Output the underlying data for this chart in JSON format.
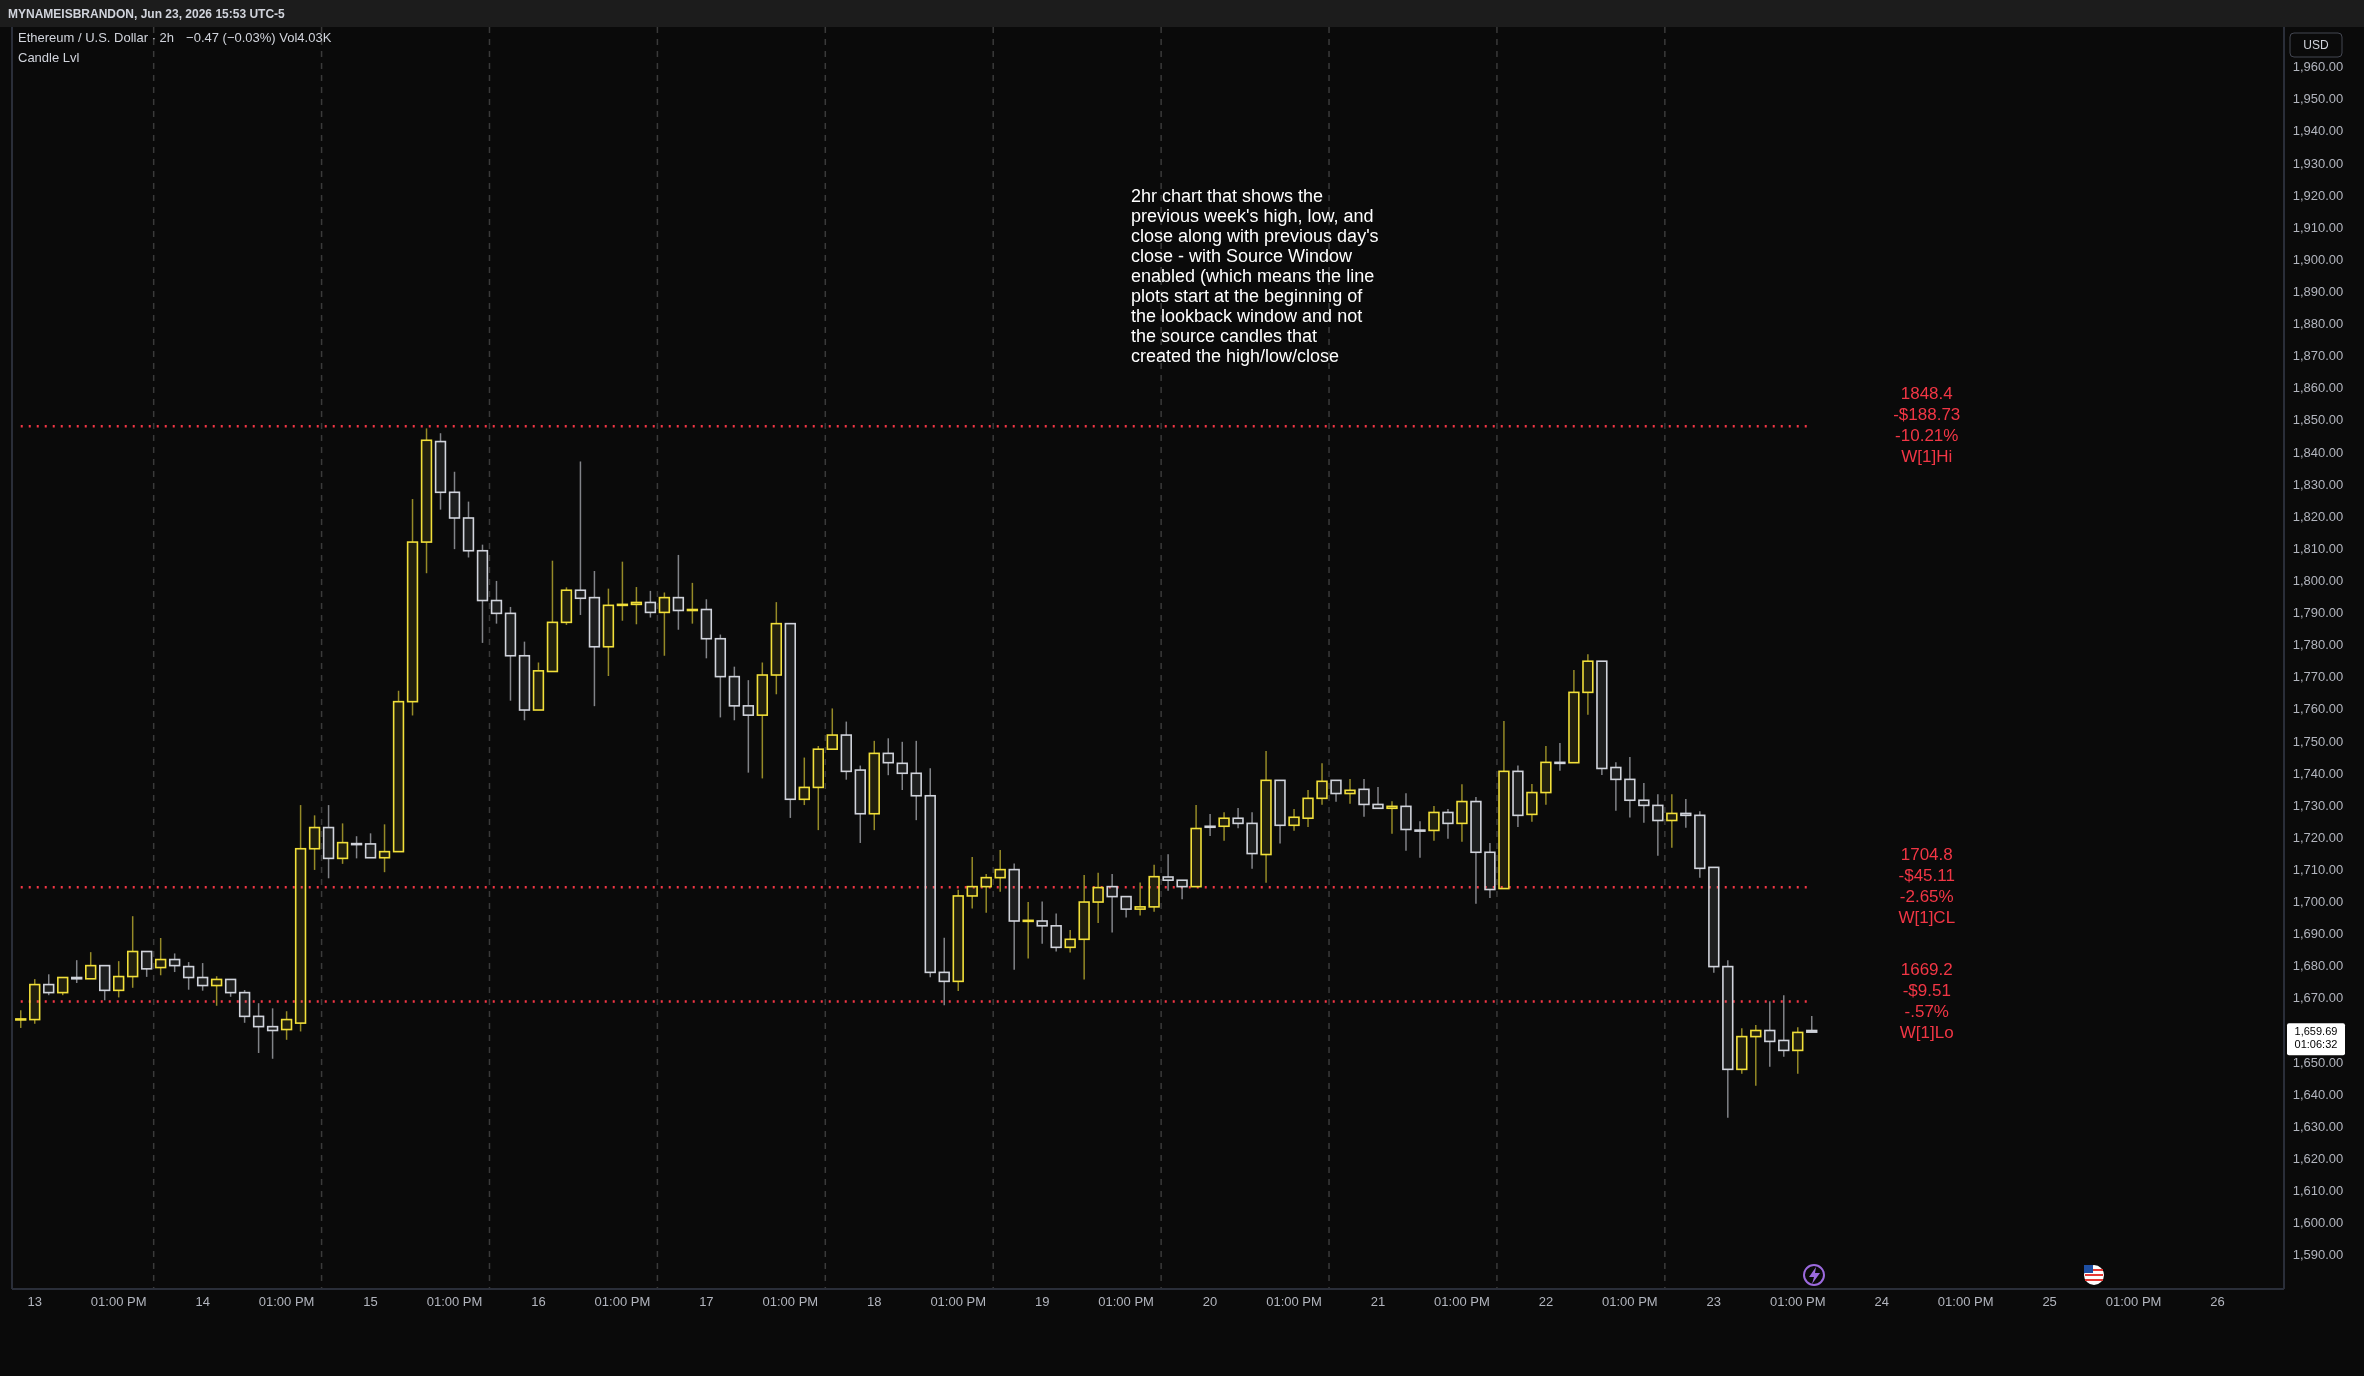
{
  "chart_data": {
    "type": "candlestick",
    "title": "Ethereum / U.S. Dollar · 2h",
    "subtitle": "−0.47 (−0.03%)   Vol4.03K",
    "annotations": [
      "MYNAMEISBRANDON, Jun 23, 2026 15:53 UTC-5",
      "Candle Lvl",
      "2hr chart that shows the\nprevious week's high, low, and\nclose along with previous day's\nclose - with Source Window\nenabled (which means the line\nplots start at the beginning of\nthe lookback window and not\nthe source candles that\ncreated the high/low/close",
      "USD",
      "1,659.69\n01:06:32"
    ],
    "x": [
      "2026-06-12T23:00",
      "2026-06-13T01:00",
      "2026-06-13T03:00",
      "2026-06-13T05:00",
      "2026-06-13T07:00",
      "2026-06-13T09:00",
      "2026-06-13T11:00",
      "2026-06-13T13:00",
      "2026-06-13T15:00",
      "2026-06-13T17:00",
      "2026-06-13T19:00",
      "2026-06-13T21:00",
      "2026-06-13T23:00",
      "2026-06-14T01:00",
      "2026-06-14T03:00",
      "2026-06-14T05:00",
      "2026-06-14T07:00",
      "2026-06-14T09:00",
      "2026-06-14T11:00",
      "2026-06-14T13:00",
      "2026-06-14T15:00",
      "2026-06-14T17:00",
      "2026-06-14T19:00",
      "2026-06-14T21:00",
      "2026-06-14T23:00",
      "2026-06-15T01:00",
      "2026-06-15T03:00",
      "2026-06-15T05:00",
      "2026-06-15T07:00",
      "2026-06-15T09:00",
      "2026-06-15T11:00",
      "2026-06-15T13:00",
      "2026-06-15T15:00",
      "2026-06-15T17:00",
      "2026-06-15T19:00",
      "2026-06-15T21:00",
      "2026-06-15T23:00",
      "2026-06-16T01:00",
      "2026-06-16T03:00",
      "2026-06-16T05:00",
      "2026-06-16T07:00",
      "2026-06-16T09:00",
      "2026-06-16T11:00",
      "2026-06-16T13:00",
      "2026-06-16T15:00",
      "2026-06-16T17:00",
      "2026-06-16T19:00",
      "2026-06-16T21:00",
      "2026-06-16T23:00",
      "2026-06-17T01:00",
      "2026-06-17T03:00",
      "2026-06-17T05:00",
      "2026-06-17T07:00",
      "2026-06-17T09:00",
      "2026-06-17T11:00",
      "2026-06-17T13:00",
      "2026-06-17T15:00",
      "2026-06-17T17:00",
      "2026-06-17T19:00",
      "2026-06-17T21:00",
      "2026-06-17T23:00",
      "2026-06-18T01:00",
      "2026-06-18T03:00",
      "2026-06-18T05:00",
      "2026-06-18T07:00",
      "2026-06-18T09:00",
      "2026-06-18T11:00",
      "2026-06-18T13:00",
      "2026-06-18T15:00",
      "2026-06-18T17:00",
      "2026-06-18T19:00",
      "2026-06-18T21:00",
      "2026-06-18T23:00",
      "2026-06-19T01:00",
      "2026-06-19T03:00",
      "2026-06-19T05:00",
      "2026-06-19T07:00",
      "2026-06-19T09:00",
      "2026-06-19T11:00",
      "2026-06-19T13:00",
      "2026-06-19T15:00",
      "2026-06-19T17:00",
      "2026-06-19T19:00",
      "2026-06-19T21:00",
      "2026-06-19T23:00",
      "2026-06-20T01:00",
      "2026-06-20T03:00",
      "2026-06-20T05:00",
      "2026-06-20T07:00",
      "2026-06-20T09:00",
      "2026-06-20T11:00",
      "2026-06-20T13:00",
      "2026-06-20T15:00",
      "2026-06-20T17:00",
      "2026-06-20T19:00",
      "2026-06-20T21:00",
      "2026-06-20T23:00",
      "2026-06-21T01:00",
      "2026-06-21T03:00",
      "2026-06-21T05:00",
      "2026-06-21T07:00",
      "2026-06-21T09:00",
      "2026-06-21T11:00",
      "2026-06-21T13:00",
      "2026-06-21T15:00",
      "2026-06-21T17:00",
      "2026-06-21T19:00",
      "2026-06-21T21:00",
      "2026-06-21T23:00",
      "2026-06-22T01:00",
      "2026-06-22T03:00",
      "2026-06-22T05:00",
      "2026-06-22T07:00",
      "2026-06-22T09:00",
      "2026-06-22T11:00",
      "2026-06-22T13:00",
      "2026-06-22T15:00",
      "2026-06-22T17:00",
      "2026-06-22T19:00",
      "2026-06-22T21:00",
      "2026-06-22T23:00",
      "2026-06-23T01:00",
      "2026-06-23T03:00",
      "2026-06-23T05:00",
      "2026-06-23T07:00",
      "2026-06-23T09:00",
      "2026-06-23T11:00",
      "2026-06-23T13:00",
      "2026-06-23T15:00"
    ],
    "ohlc": [
      [
        1663.6,
        1666.5,
        1661.0,
        1663.8
      ],
      [
        1663.6,
        1676.2,
        1662.3,
        1674.5
      ],
      [
        1674.5,
        1677.7,
        1671.2,
        1672.0
      ],
      [
        1672.0,
        1677.1,
        1671.2,
        1676.7
      ],
      [
        1676.7,
        1682.1,
        1675.0,
        1676.3
      ],
      [
        1676.3,
        1684.6,
        1675.9,
        1680.4
      ],
      [
        1680.4,
        1680.9,
        1669.6,
        1672.7
      ],
      [
        1672.7,
        1681.8,
        1670.5,
        1677.0
      ],
      [
        1677.0,
        1695.8,
        1673.5,
        1684.8
      ],
      [
        1684.8,
        1684.8,
        1676.9,
        1679.4
      ],
      [
        1679.8,
        1689.0,
        1677.4,
        1682.3
      ],
      [
        1682.3,
        1684.2,
        1678.4,
        1680.4
      ],
      [
        1680.1,
        1681.5,
        1672.9,
        1676.7
      ],
      [
        1676.7,
        1681.2,
        1672.6,
        1674.2
      ],
      [
        1674.2,
        1677.1,
        1667.9,
        1676.1
      ],
      [
        1676.1,
        1676.7,
        1670.7,
        1672.0
      ],
      [
        1672.0,
        1672.8,
        1662.6,
        1664.6
      ],
      [
        1664.6,
        1668.7,
        1653.2,
        1661.4
      ],
      [
        1661.4,
        1667.1,
        1651.4,
        1660.2
      ],
      [
        1660.5,
        1666.2,
        1657.3,
        1663.6
      ],
      [
        1662.5,
        1730.4,
        1659.9,
        1716.8
      ],
      [
        1716.8,
        1727.2,
        1710.2,
        1723.4
      ],
      [
        1723.4,
        1730.4,
        1707.6,
        1713.8
      ],
      [
        1713.8,
        1724.7,
        1712.1,
        1718.7
      ],
      [
        1718.4,
        1720.7,
        1713.8,
        1718.2
      ],
      [
        1718.3,
        1721.6,
        1714.0,
        1714.0
      ],
      [
        1714.0,
        1724.4,
        1709.5,
        1715.9
      ],
      [
        1715.9,
        1766.0,
        1715.9,
        1762.6
      ],
      [
        1762.6,
        1825.7,
        1758.3,
        1812.3
      ],
      [
        1812.3,
        1847.7,
        1802.6,
        1844.0
      ],
      [
        1843.6,
        1846.2,
        1822.4,
        1827.8
      ],
      [
        1827.8,
        1834.2,
        1810.1,
        1819.8
      ],
      [
        1819.8,
        1824.9,
        1807.5,
        1809.6
      ],
      [
        1809.6,
        1811.5,
        1780.9,
        1794.1
      ],
      [
        1794.1,
        1800.2,
        1786.9,
        1790.1
      ],
      [
        1790.1,
        1792.1,
        1762.9,
        1776.9
      ],
      [
        1776.9,
        1781.3,
        1756.8,
        1760.0
      ],
      [
        1760.0,
        1774.8,
        1760.0,
        1772.2
      ],
      [
        1772.0,
        1806.5,
        1772.0,
        1787.3
      ],
      [
        1787.3,
        1798.2,
        1786.5,
        1797.3
      ],
      [
        1797.3,
        1837.4,
        1789.6,
        1794.8
      ],
      [
        1795.0,
        1803.3,
        1761.2,
        1779.7
      ],
      [
        1779.7,
        1797.8,
        1770.6,
        1792.6
      ],
      [
        1792.7,
        1806.2,
        1787.8,
        1792.9
      ],
      [
        1792.9,
        1798.3,
        1786.7,
        1793.5
      ],
      [
        1793.5,
        1797.1,
        1788.8,
        1790.4
      ],
      [
        1790.4,
        1796.6,
        1776.9,
        1795.0
      ],
      [
        1795.0,
        1808.3,
        1785.0,
        1791.0
      ],
      [
        1791.1,
        1799.6,
        1786.9,
        1791.3
      ],
      [
        1791.3,
        1794.5,
        1776.1,
        1782.2
      ],
      [
        1782.2,
        1783.5,
        1757.7,
        1770.4
      ],
      [
        1770.4,
        1773.5,
        1756.8,
        1761.3
      ],
      [
        1761.3,
        1769.3,
        1740.5,
        1758.4
      ],
      [
        1758.4,
        1774.8,
        1738.7,
        1770.9
      ],
      [
        1770.9,
        1793.6,
        1764.9,
        1786.9
      ],
      [
        1786.9,
        1786.9,
        1726.4,
        1732.2
      ],
      [
        1732.2,
        1745.2,
        1730.4,
        1735.9
      ],
      [
        1735.9,
        1748.8,
        1722.6,
        1747.8
      ],
      [
        1747.8,
        1760.5,
        1747.6,
        1752.2
      ],
      [
        1752.2,
        1756.4,
        1738.3,
        1740.9
      ],
      [
        1741.3,
        1742.7,
        1718.6,
        1727.7
      ],
      [
        1727.7,
        1750.4,
        1722.6,
        1746.5
      ],
      [
        1746.5,
        1751.2,
        1739.7,
        1743.6
      ],
      [
        1743.4,
        1750.1,
        1735.1,
        1740.3
      ],
      [
        1740.3,
        1750.4,
        1725.7,
        1733.3
      ],
      [
        1733.3,
        1741.9,
        1676.8,
        1678.3
      ],
      [
        1678.3,
        1689.1,
        1668.1,
        1675.5
      ],
      [
        1675.5,
        1704.0,
        1672.5,
        1702.1
      ],
      [
        1702.1,
        1714.2,
        1698.2,
        1705.0
      ],
      [
        1705.0,
        1708.9,
        1696.9,
        1707.8
      ],
      [
        1707.8,
        1716.4,
        1703.4,
        1710.3
      ],
      [
        1710.3,
        1712.2,
        1679.1,
        1694.3
      ],
      [
        1694.3,
        1700.2,
        1682.6,
        1694.5
      ],
      [
        1694.3,
        1700.4,
        1687.2,
        1692.8
      ],
      [
        1692.8,
        1696.6,
        1684.8,
        1686.1
      ],
      [
        1686.1,
        1691.5,
        1684.5,
        1688.6
      ],
      [
        1688.6,
        1708.6,
        1676.1,
        1700.2
      ],
      [
        1700.2,
        1709.3,
        1693.7,
        1704.7
      ],
      [
        1705.0,
        1708.9,
        1690.7,
        1701.9
      ],
      [
        1701.9,
        1702.5,
        1695.4,
        1698.0
      ],
      [
        1698.0,
        1706.3,
        1696.0,
        1698.7
      ],
      [
        1698.7,
        1711.8,
        1697.2,
        1708.1
      ],
      [
        1708.0,
        1715.1,
        1703.7,
        1707.0
      ],
      [
        1707.0,
        1707.6,
        1701.1,
        1705.0
      ],
      [
        1705.0,
        1730.4,
        1705.0,
        1723.1
      ],
      [
        1723.8,
        1727.6,
        1720.8,
        1723.6
      ],
      [
        1723.8,
        1728.2,
        1719.3,
        1726.3
      ],
      [
        1726.3,
        1729.5,
        1723.2,
        1724.7
      ],
      [
        1724.7,
        1728.2,
        1710.6,
        1715.3
      ],
      [
        1715.0,
        1747.2,
        1706.2,
        1738.1
      ],
      [
        1738.1,
        1738.4,
        1718.4,
        1724.1
      ],
      [
        1724.1,
        1729.2,
        1722.4,
        1726.6
      ],
      [
        1726.3,
        1735.1,
        1723.6,
        1732.5
      ],
      [
        1732.5,
        1743.4,
        1730.5,
        1737.8
      ],
      [
        1738.1,
        1738.1,
        1731.4,
        1734.0
      ],
      [
        1734.0,
        1738.5,
        1730.8,
        1735.0
      ],
      [
        1735.3,
        1738.5,
        1726.8,
        1730.6
      ],
      [
        1730.6,
        1736.0,
        1728.9,
        1729.4
      ],
      [
        1729.4,
        1731.6,
        1721.5,
        1730.0
      ],
      [
        1730.0,
        1734.1,
        1716.2,
        1722.8
      ],
      [
        1722.6,
        1725.4,
        1714.0,
        1722.4
      ],
      [
        1722.5,
        1730.1,
        1719.3,
        1728.1
      ],
      [
        1728.1,
        1729.2,
        1719.9,
        1724.7
      ],
      [
        1724.7,
        1736.9,
        1719.0,
        1731.5
      ],
      [
        1731.5,
        1732.9,
        1699.7,
        1715.7
      ],
      [
        1715.7,
        1718.6,
        1701.5,
        1704.1
      ],
      [
        1704.4,
        1756.6,
        1704.4,
        1740.9
      ],
      [
        1740.9,
        1742.7,
        1723.6,
        1727.2
      ],
      [
        1727.5,
        1737.0,
        1725.2,
        1734.3
      ],
      [
        1734.3,
        1748.8,
        1730.5,
        1743.7
      ],
      [
        1743.7,
        1749.7,
        1741.1,
        1743.5
      ],
      [
        1743.6,
        1772.5,
        1743.1,
        1765.5
      ],
      [
        1765.5,
        1777.4,
        1758.5,
        1775.2
      ],
      [
        1775.2,
        1775.6,
        1739.8,
        1741.8
      ],
      [
        1742.1,
        1743.7,
        1728.6,
        1738.4
      ],
      [
        1738.4,
        1745.4,
        1726.5,
        1731.9
      ],
      [
        1731.9,
        1737.3,
        1724.9,
        1730.3
      ],
      [
        1730.3,
        1733.8,
        1714.6,
        1725.6
      ],
      [
        1725.6,
        1733.8,
        1717.1,
        1727.8
      ],
      [
        1727.8,
        1732.3,
        1723.3,
        1727.2
      ],
      [
        1727.2,
        1728.5,
        1707.8,
        1710.7
      ],
      [
        1711.0,
        1711.0,
        1678.2,
        1680.1
      ],
      [
        1680.1,
        1682.1,
        1633.0,
        1648.1
      ],
      [
        1648.1,
        1660.9,
        1646.7,
        1658.3
      ],
      [
        1658.3,
        1661.9,
        1643.0,
        1660.2
      ],
      [
        1660.2,
        1669.3,
        1648.9,
        1656.8
      ],
      [
        1657.1,
        1671.2,
        1652.0,
        1654.0
      ],
      [
        1654.0,
        1661.2,
        1646.7,
        1659.6
      ],
      [
        1660.2,
        1664.7,
        1659.5,
        1659.69
      ]
    ],
    "colors": [
      "#f2e03a",
      "#f2e03a",
      "#d1d4dc",
      "#f2e03a",
      "#d1d4dc",
      "#f2e03a",
      "#d1d4dc",
      "#f2e03a",
      "#f2e03a",
      "#d1d4dc",
      "#f2e03a",
      "#d1d4dc",
      "#d1d4dc",
      "#d1d4dc",
      "#f2e03a",
      "#d1d4dc",
      "#d1d4dc",
      "#d1d4dc",
      "#d1d4dc",
      "#f2e03a",
      "#f2e03a",
      "#f2e03a",
      "#d1d4dc",
      "#f2e03a",
      "#d1d4dc",
      "#d1d4dc",
      "#f2e03a",
      "#f2e03a",
      "#f2e03a",
      "#f2e03a",
      "#d1d4dc",
      "#d1d4dc",
      "#d1d4dc",
      "#d1d4dc",
      "#d1d4dc",
      "#d1d4dc",
      "#d1d4dc",
      "#f2e03a",
      "#f2e03a",
      "#f2e03a",
      "#d1d4dc",
      "#d1d4dc",
      "#f2e03a",
      "#f2e03a",
      "#f2e03a",
      "#d1d4dc",
      "#f2e03a",
      "#d1d4dc",
      "#f2e03a",
      "#d1d4dc",
      "#d1d4dc",
      "#d1d4dc",
      "#d1d4dc",
      "#f2e03a",
      "#f2e03a",
      "#d1d4dc",
      "#f2e03a",
      "#f2e03a",
      "#f2e03a",
      "#d1d4dc",
      "#d1d4dc",
      "#f2e03a",
      "#d1d4dc",
      "#d1d4dc",
      "#d1d4dc",
      "#d1d4dc",
      "#d1d4dc",
      "#f2e03a",
      "#f2e03a",
      "#f2e03a",
      "#f2e03a",
      "#d1d4dc",
      "#f2e03a",
      "#d1d4dc",
      "#d1d4dc",
      "#f2e03a",
      "#f2e03a",
      "#f2e03a",
      "#d1d4dc",
      "#d1d4dc",
      "#f2e03a",
      "#f2e03a",
      "#d1d4dc",
      "#d1d4dc",
      "#f2e03a",
      "#d1d4dc",
      "#f2e03a",
      "#d1d4dc",
      "#d1d4dc",
      "#f2e03a",
      "#d1d4dc",
      "#f2e03a",
      "#f2e03a",
      "#f2e03a",
      "#d1d4dc",
      "#f2e03a",
      "#d1d4dc",
      "#d1d4dc",
      "#f2e03a",
      "#d1d4dc",
      "#d1d4dc",
      "#f2e03a",
      "#d1d4dc",
      "#f2e03a",
      "#d1d4dc",
      "#d1d4dc",
      "#f2e03a",
      "#d1d4dc",
      "#f2e03a",
      "#f2e03a",
      "#d1d4dc",
      "#f2e03a",
      "#f2e03a",
      "#d1d4dc",
      "#d1d4dc",
      "#d1d4dc",
      "#d1d4dc",
      "#d1d4dc",
      "#f2e03a",
      "#d1d4dc",
      "#d1d4dc",
      "#d1d4dc",
      "#d1d4dc",
      "#f2e03a",
      "#f2e03a",
      "#d1d4dc",
      "#d1d4dc",
      "#f2e03a",
      "#d1d4dc"
    ],
    "xlim": [
      "2026-06-12T21:45",
      "2026-06-26T10:30"
    ],
    "xticks": [
      {
        "value": "2026-06-13T01:00",
        "label": "13"
      },
      {
        "value": "2026-06-13T13:00",
        "label": "01:00 PM"
      },
      {
        "value": "2026-06-14T01:00",
        "label": "14"
      },
      {
        "value": "2026-06-14T13:00",
        "label": "01:00 PM"
      },
      {
        "value": "2026-06-15T01:00",
        "label": "15"
      },
      {
        "value": "2026-06-15T13:00",
        "label": "01:00 PM"
      },
      {
        "value": "2026-06-16T01:00",
        "label": "16"
      },
      {
        "value": "2026-06-16T13:00",
        "label": "01:00 PM"
      },
      {
        "value": "2026-06-17T01:00",
        "label": "17"
      },
      {
        "value": "2026-06-17T13:00",
        "label": "01:00 PM"
      },
      {
        "value": "2026-06-18T01:00",
        "label": "18"
      },
      {
        "value": "2026-06-18T13:00",
        "label": "01:00 PM"
      },
      {
        "value": "2026-06-19T01:00",
        "label": "19"
      },
      {
        "value": "2026-06-19T13:00",
        "label": "01:00 PM"
      },
      {
        "value": "2026-06-20T01:00",
        "label": "20"
      },
      {
        "value": "2026-06-20T13:00",
        "label": "01:00 PM"
      },
      {
        "value": "2026-06-21T01:00",
        "label": "21"
      },
      {
        "value": "2026-06-21T13:00",
        "label": "01:00 PM"
      },
      {
        "value": "2026-06-22T01:00",
        "label": "22"
      },
      {
        "value": "2026-06-22T13:00",
        "label": "01:00 PM"
      },
      {
        "value": "2026-06-23T01:00",
        "label": "23"
      },
      {
        "value": "2026-06-23T13:00",
        "label": "01:00 PM"
      },
      {
        "value": "2026-06-24T01:00",
        "label": "24"
      },
      {
        "value": "2026-06-24T13:00",
        "label": "01:00 PM"
      },
      {
        "value": "2026-06-25T01:00",
        "label": "25"
      },
      {
        "value": "2026-06-25T13:00",
        "label": "01:00 PM"
      },
      {
        "value": "2026-06-26T01:00",
        "label": "26"
      }
    ],
    "ylim": [
      1579.7,
      1972.7
    ],
    "yticks": [
      {
        "value": 1590,
        "label": "1,590.00"
      },
      {
        "value": 1600,
        "label": "1,600.00"
      },
      {
        "value": 1610,
        "label": "1,610.00"
      },
      {
        "value": 1620,
        "label": "1,620.00"
      },
      {
        "value": 1630,
        "label": "1,630.00"
      },
      {
        "value": 1640,
        "label": "1,640.00"
      },
      {
        "value": 1650,
        "label": "1,650.00"
      },
      {
        "value": 1670,
        "label": "1,670.00"
      },
      {
        "value": 1680,
        "label": "1,680.00"
      },
      {
        "value": 1690,
        "label": "1,690.00"
      },
      {
        "value": 1700,
        "label": "1,700.00"
      },
      {
        "value": 1710,
        "label": "1,710.00"
      },
      {
        "value": 1720,
        "label": "1,720.00"
      },
      {
        "value": 1730,
        "label": "1,730.00"
      },
      {
        "value": 1740,
        "label": "1,740.00"
      },
      {
        "value": 1750,
        "label": "1,750.00"
      },
      {
        "value": 1760,
        "label": "1,760.00"
      },
      {
        "value": 1770,
        "label": "1,770.00"
      },
      {
        "value": 1780,
        "label": "1,780.00"
      },
      {
        "value": 1790,
        "label": "1,790.00"
      },
      {
        "value": 1800,
        "label": "1,800.00"
      },
      {
        "value": 1810,
        "label": "1,810.00"
      },
      {
        "value": 1820,
        "label": "1,820.00"
      },
      {
        "value": 1830,
        "label": "1,830.00"
      },
      {
        "value": 1840,
        "label": "1,840.00"
      },
      {
        "value": 1850,
        "label": "1,850.00"
      },
      {
        "value": 1860,
        "label": "1,860.00"
      },
      {
        "value": 1870,
        "label": "1,870.00"
      },
      {
        "value": 1880,
        "label": "1,880.00"
      },
      {
        "value": 1890,
        "label": "1,890.00"
      },
      {
        "value": 1900,
        "label": "1,900.00"
      },
      {
        "value": 1910,
        "label": "1,910.00"
      },
      {
        "value": 1920,
        "label": "1,920.00"
      },
      {
        "value": 1930,
        "label": "1,930.00"
      },
      {
        "value": 1940,
        "label": "1,940.00"
      },
      {
        "value": 1950,
        "label": "1,950.00"
      },
      {
        "value": 1960,
        "label": "1,960.00"
      }
    ],
    "ref_lines": [
      {
        "axis": "y",
        "value": 1848.4,
        "label": "1848.4\n-$188.73\n-10.21%\nW[1]Hi",
        "color": "#f23645",
        "line_style": "dotted"
      },
      {
        "axis": "y",
        "value": 1704.8,
        "label": "1704.8\n-$45.11\n-2.65%\nW[1]CL",
        "color": "#f23645",
        "line_style": "dotted"
      },
      {
        "axis": "y",
        "value": 1669.2,
        "label": "1669.2\n-$9.51\n-.57%\nW[1]Lo",
        "color": "#f23645",
        "line_style": "dotted"
      },
      {
        "axis": "x",
        "value": "2026-06-13T18:00",
        "color": "#3a3a3a",
        "line_style": "dashed"
      },
      {
        "axis": "x",
        "value": "2026-06-14T18:00",
        "color": "#3a3a3a",
        "line_style": "dashed"
      },
      {
        "axis": "x",
        "value": "2026-06-15T18:00",
        "color": "#3a3a3a",
        "line_style": "dashed"
      },
      {
        "axis": "x",
        "value": "2026-06-16T18:00",
        "color": "#3a3a3a",
        "line_style": "dashed"
      },
      {
        "axis": "x",
        "value": "2026-06-17T18:00",
        "color": "#3a3a3a",
        "line_style": "dashed"
      },
      {
        "axis": "x",
        "value": "2026-06-18T18:00",
        "color": "#3a3a3a",
        "line_style": "dashed"
      },
      {
        "axis": "x",
        "value": "2026-06-19T18:00",
        "color": "#3a3a3a",
        "line_style": "dashed"
      },
      {
        "axis": "x",
        "value": "2026-06-20T18:00",
        "color": "#3a3a3a",
        "line_style": "dashed"
      },
      {
        "axis": "x",
        "value": "2026-06-21T18:00",
        "color": "#3a3a3a",
        "line_style": "dashed"
      },
      {
        "axis": "x",
        "value": "2026-06-22T18:00",
        "color": "#3a3a3a",
        "line_style": "dashed"
      }
    ]
  }
}
